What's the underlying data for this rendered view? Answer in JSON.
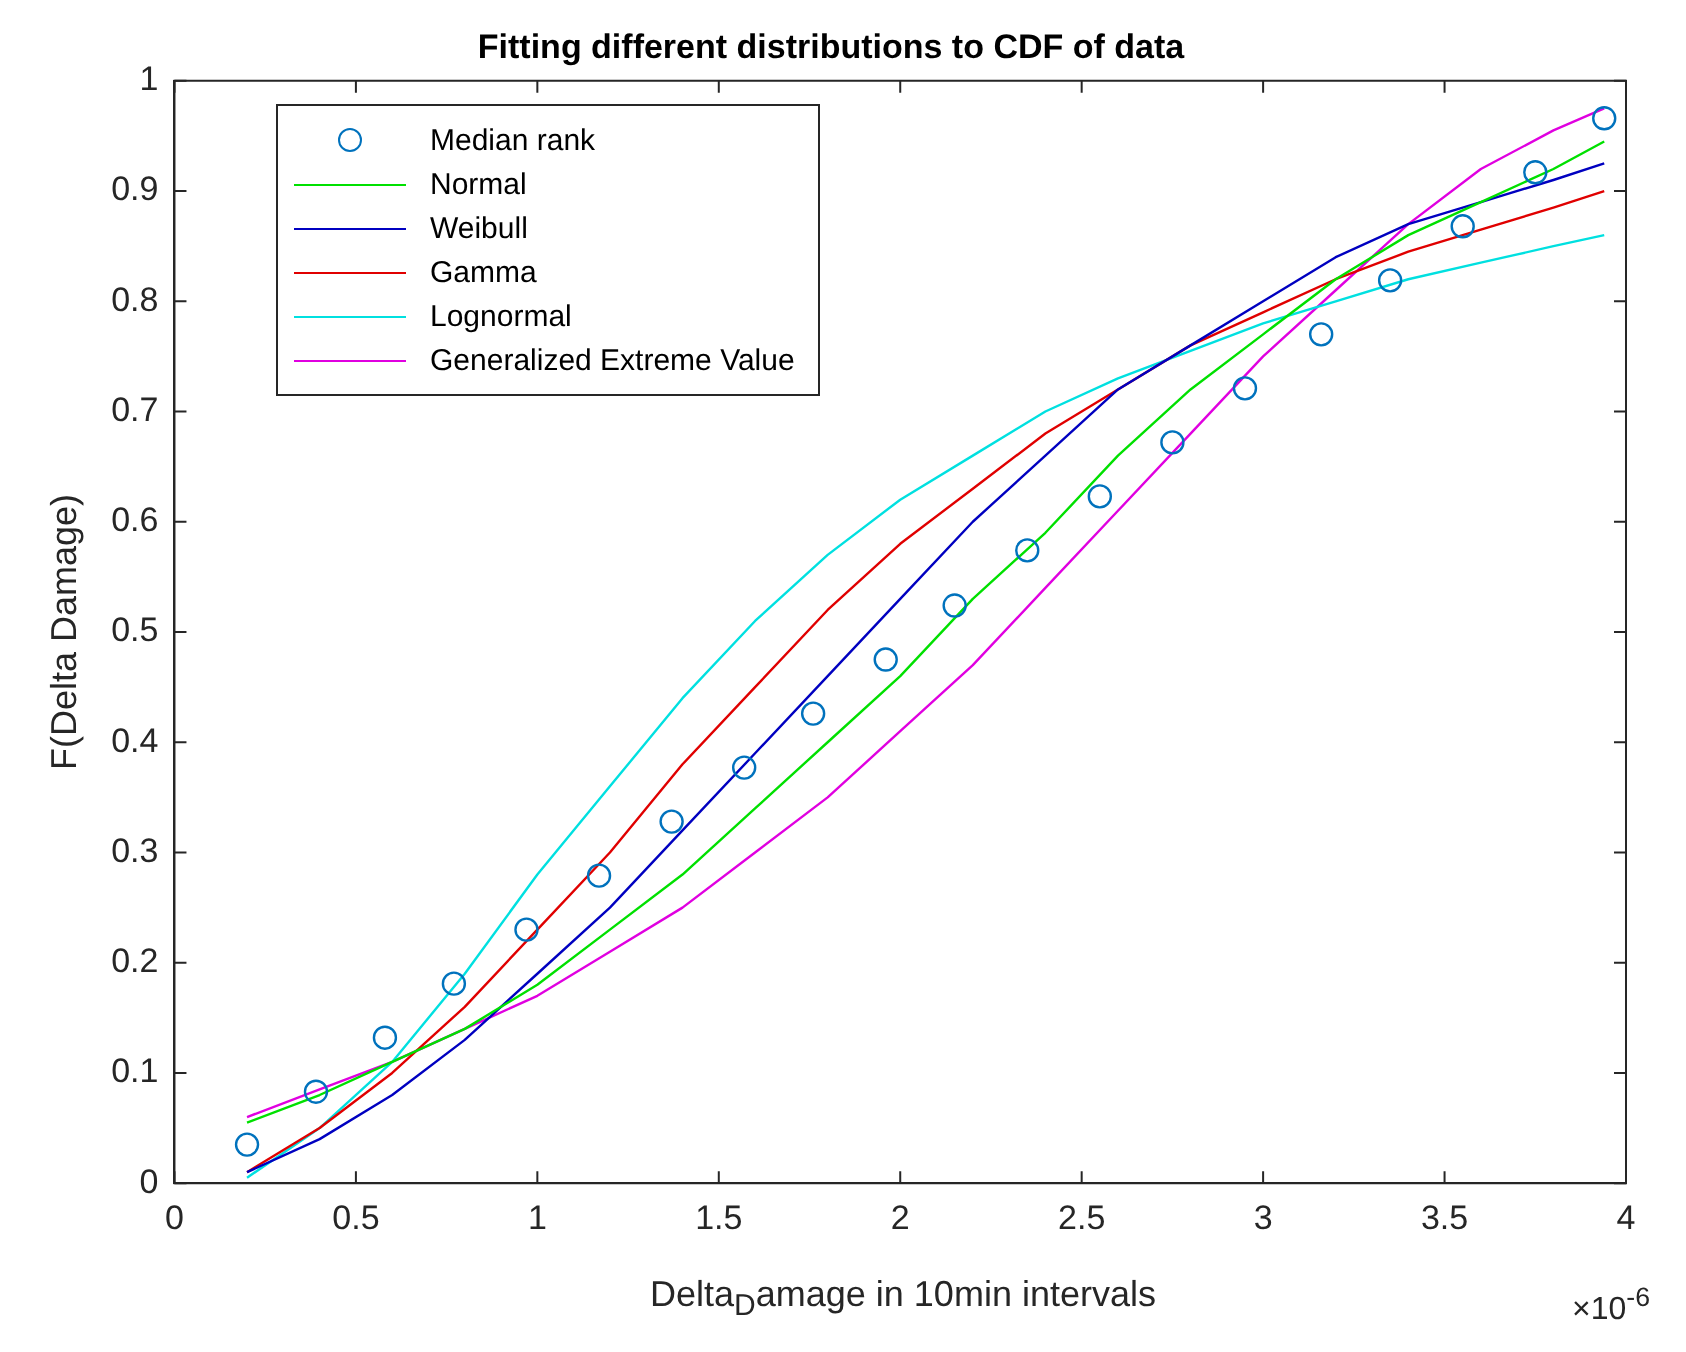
{
  "chart_data": {
    "type": "line",
    "title": "Fitting different distributions to CDF of data",
    "xlabel": "Delta$_{D}$amage in 10min intervals",
    "ylabel": "F(Delta Damage)",
    "annotations": [
      "×10$^{-6}$"
    ],
    "xlim": [
      0,
      4
    ],
    "xticks": [
      0,
      0.5,
      1,
      1.5,
      2,
      2.5,
      3,
      3.5,
      4
    ],
    "ylim": [
      0,
      1
    ],
    "yticks": [
      0,
      0.1,
      0.2,
      0.3,
      0.4,
      0.5,
      0.6,
      0.7,
      0.8,
      0.9,
      1
    ],
    "grid": false,
    "legend": "top left",
    "series": [
      {
        "name": "Median rank",
        "type": "scatter",
        "marker": "circle",
        "color": "#0072bd",
        "x": [
          0.2,
          0.39,
          0.58,
          0.77,
          0.97,
          1.17,
          1.37,
          1.57,
          1.76,
          1.96,
          2.15,
          2.35,
          2.55,
          2.75,
          2.95,
          3.16,
          3.35,
          3.55,
          3.75,
          3.94
        ],
        "values": [
          0.035,
          0.083,
          0.132,
          0.181,
          0.23,
          0.279,
          0.328,
          0.377,
          0.426,
          0.475,
          0.524,
          0.574,
          0.623,
          0.672,
          0.721,
          0.77,
          0.819,
          0.868,
          0.917,
          0.966
        ]
      },
      {
        "name": "Normal",
        "type": "line",
        "marker": "none",
        "color": "#00e000",
        "x": [
          0.2,
          0.4,
          0.6,
          0.8,
          1.0,
          1.2,
          1.4,
          1.6,
          1.8,
          2.0,
          2.2,
          2.4,
          2.6,
          2.8,
          3.0,
          3.2,
          3.4,
          3.6,
          3.8,
          3.94
        ],
        "values": [
          0.055,
          0.08,
          0.11,
          0.14,
          0.18,
          0.23,
          0.28,
          0.34,
          0.4,
          0.46,
          0.53,
          0.59,
          0.66,
          0.72,
          0.77,
          0.82,
          0.86,
          0.89,
          0.92,
          0.945
        ]
      },
      {
        "name": "Weibull",
        "type": "line",
        "marker": "none",
        "color": "#0000c0",
        "x": [
          0.2,
          0.4,
          0.6,
          0.8,
          1.0,
          1.2,
          1.4,
          1.6,
          1.8,
          2.0,
          2.2,
          2.4,
          2.6,
          2.8,
          3.0,
          3.2,
          3.4,
          3.6,
          3.8,
          3.94
        ],
        "values": [
          0.01,
          0.04,
          0.08,
          0.13,
          0.19,
          0.25,
          0.32,
          0.39,
          0.46,
          0.53,
          0.6,
          0.66,
          0.72,
          0.76,
          0.8,
          0.84,
          0.87,
          0.89,
          0.91,
          0.925
        ]
      },
      {
        "name": "Gamma",
        "type": "line",
        "marker": "none",
        "color": "#e00000",
        "x": [
          0.2,
          0.4,
          0.6,
          0.8,
          1.0,
          1.2,
          1.4,
          1.6,
          1.8,
          2.0,
          2.2,
          2.4,
          2.6,
          2.8,
          3.0,
          3.2,
          3.4,
          3.6,
          3.8,
          3.94
        ],
        "values": [
          0.01,
          0.05,
          0.1,
          0.16,
          0.23,
          0.3,
          0.38,
          0.45,
          0.52,
          0.58,
          0.63,
          0.68,
          0.72,
          0.76,
          0.79,
          0.82,
          0.845,
          0.865,
          0.885,
          0.9
        ]
      },
      {
        "name": "Lognormal",
        "type": "line",
        "marker": "none",
        "color": "#00e0e0",
        "x": [
          0.2,
          0.4,
          0.6,
          0.8,
          1.0,
          1.2,
          1.4,
          1.6,
          1.8,
          2.0,
          2.2,
          2.4,
          2.6,
          2.8,
          3.0,
          3.2,
          3.4,
          3.6,
          3.8,
          3.94
        ],
        "values": [
          0.005,
          0.05,
          0.11,
          0.19,
          0.28,
          0.36,
          0.44,
          0.51,
          0.57,
          0.62,
          0.66,
          0.7,
          0.73,
          0.755,
          0.78,
          0.8,
          0.82,
          0.835,
          0.85,
          0.86
        ]
      },
      {
        "name": "Generalized Extreme Value",
        "type": "line",
        "marker": "none",
        "color": "#e000e0",
        "x": [
          0.2,
          0.4,
          0.6,
          0.8,
          1.0,
          1.2,
          1.4,
          1.6,
          1.8,
          2.0,
          2.2,
          2.4,
          2.6,
          2.8,
          3.0,
          3.2,
          3.4,
          3.6,
          3.8,
          3.94
        ],
        "values": [
          0.06,
          0.085,
          0.11,
          0.14,
          0.17,
          0.21,
          0.25,
          0.3,
          0.35,
          0.41,
          0.47,
          0.54,
          0.61,
          0.68,
          0.75,
          0.81,
          0.87,
          0.92,
          0.955,
          0.975
        ]
      }
    ]
  }
}
